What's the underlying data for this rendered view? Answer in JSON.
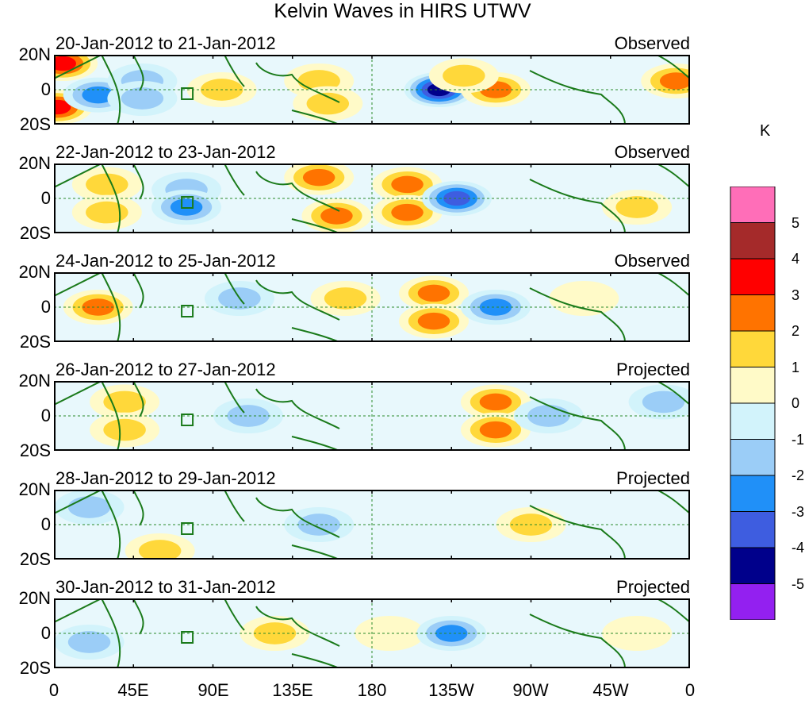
{
  "title": "Kelvin Waves in HIRS UTWV",
  "lat_labels": [
    "20N",
    "0",
    "20S"
  ],
  "lon_labels": [
    "0",
    "45E",
    "90E",
    "135E",
    "180",
    "135W",
    "90W",
    "45W",
    "0"
  ],
  "colorbar": {
    "unit": "K",
    "labels": [
      "5",
      "4",
      "3",
      "2",
      "1",
      "0",
      "-1",
      "-2",
      "-3",
      "-4",
      "-5"
    ],
    "colors": [
      "#ff6eb8",
      "#a52a2a",
      "#ff0000",
      "#ff7300",
      "#ffd83a",
      "#fffac8",
      "#d2f3fb",
      "#9bcdf7",
      "#2090f8",
      "#3e5de0",
      "#00008b",
      "#9320f0"
    ]
  },
  "panels": [
    {
      "date_range": "20-Jan-2012 to 21-Jan-2012",
      "status": "Observed",
      "features": [
        {
          "lon": 5,
          "lat": 15,
          "level": 3
        },
        {
          "lon": 2,
          "lat": -10,
          "level": 3
        },
        {
          "lon": 25,
          "lat": -3,
          "level": -2
        },
        {
          "lon": 50,
          "lat": 5,
          "level": -1
        },
        {
          "lon": 50,
          "lat": -5,
          "level": -1
        },
        {
          "lon": 95,
          "lat": 0,
          "level": 1
        },
        {
          "lon": 150,
          "lat": 5,
          "level": 1
        },
        {
          "lon": 155,
          "lat": -8,
          "level": 1
        },
        {
          "lon": 218,
          "lat": 0,
          "level": -4
        },
        {
          "lon": 250,
          "lat": 0,
          "level": 2
        },
        {
          "lon": 232,
          "lat": 8,
          "level": 1
        },
        {
          "lon": 352,
          "lat": 5,
          "level": 2
        }
      ]
    },
    {
      "date_range": "22-Jan-2012 to 23-Jan-2012",
      "status": "Observed",
      "features": [
        {
          "lon": 30,
          "lat": 8,
          "level": 1
        },
        {
          "lon": 30,
          "lat": -8,
          "level": 1
        },
        {
          "lon": 75,
          "lat": 5,
          "level": -1
        },
        {
          "lon": 75,
          "lat": -5,
          "level": -2
        },
        {
          "lon": 150,
          "lat": 12,
          "level": 2
        },
        {
          "lon": 160,
          "lat": -10,
          "level": 2
        },
        {
          "lon": 200,
          "lat": 8,
          "level": 2
        },
        {
          "lon": 200,
          "lat": -8,
          "level": 2
        },
        {
          "lon": 228,
          "lat": 0,
          "level": -3
        },
        {
          "lon": 330,
          "lat": -5,
          "level": 1
        }
      ]
    },
    {
      "date_range": "24-Jan-2012 to 25-Jan-2012",
      "status": "Observed",
      "features": [
        {
          "lon": 25,
          "lat": 0,
          "level": 2
        },
        {
          "lon": 105,
          "lat": 5,
          "level": -1
        },
        {
          "lon": 165,
          "lat": 5,
          "level": 1
        },
        {
          "lon": 215,
          "lat": 8,
          "level": 2
        },
        {
          "lon": 215,
          "lat": -8,
          "level": 2
        },
        {
          "lon": 250,
          "lat": 0,
          "level": -2
        },
        {
          "lon": 300,
          "lat": 5,
          "level": 0
        }
      ]
    },
    {
      "date_range": "26-Jan-2012 to 27-Jan-2012",
      "status": "Projected",
      "features": [
        {
          "lon": 40,
          "lat": 8,
          "level": 1
        },
        {
          "lon": 40,
          "lat": -8,
          "level": 1
        },
        {
          "lon": 110,
          "lat": 0,
          "level": -1
        },
        {
          "lon": 250,
          "lat": 8,
          "level": 2
        },
        {
          "lon": 250,
          "lat": -8,
          "level": 2
        },
        {
          "lon": 280,
          "lat": 0,
          "level": -1
        },
        {
          "lon": 345,
          "lat": 8,
          "level": -1
        }
      ]
    },
    {
      "date_range": "28-Jan-2012 to 29-Jan-2012",
      "status": "Projected",
      "features": [
        {
          "lon": 20,
          "lat": 10,
          "level": -1
        },
        {
          "lon": 150,
          "lat": 0,
          "level": -1
        },
        {
          "lon": 270,
          "lat": 0,
          "level": 1
        },
        {
          "lon": 60,
          "lat": -15,
          "level": 1
        }
      ]
    },
    {
      "date_range": "30-Jan-2012 to 31-Jan-2012",
      "status": "Projected",
      "features": [
        {
          "lon": 20,
          "lat": -5,
          "level": -1
        },
        {
          "lon": 125,
          "lat": 0,
          "level": 1
        },
        {
          "lon": 190,
          "lat": 0,
          "level": 0
        },
        {
          "lon": 225,
          "lat": 0,
          "level": -2
        },
        {
          "lon": 330,
          "lat": 0,
          "level": 0
        }
      ]
    }
  ]
}
